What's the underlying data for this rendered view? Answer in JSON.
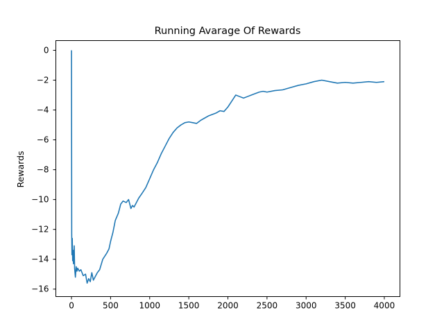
{
  "chart_data": {
    "type": "line",
    "title": "Running Avarage Of Rewards",
    "xlabel": "",
    "ylabel": "Rewards",
    "xlim": [
      -200,
      4200
    ],
    "ylim": [
      -16.5,
      0.65
    ],
    "xticks": [
      0,
      500,
      1000,
      1500,
      2000,
      2500,
      3000,
      3500,
      4000
    ],
    "yticks": [
      0,
      -2,
      -4,
      -6,
      -8,
      -10,
      -12,
      -14,
      -16
    ],
    "grid": false,
    "legend": "none",
    "series": [
      {
        "color": "#1f77b4",
        "x": [
          0,
          3,
          6,
          10,
          15,
          20,
          25,
          30,
          35,
          40,
          50,
          60,
          70,
          80,
          100,
          120,
          150,
          180,
          200,
          220,
          240,
          260,
          280,
          300,
          330,
          360,
          400,
          450,
          480,
          500,
          530,
          560,
          600,
          630,
          660,
          700,
          730,
          760,
          780,
          800,
          830,
          860,
          900,
          950,
          1000,
          1050,
          1100,
          1150,
          1200,
          1250,
          1300,
          1350,
          1400,
          1450,
          1500,
          1550,
          1600,
          1650,
          1700,
          1750,
          1800,
          1850,
          1900,
          1950,
          2000,
          2050,
          2100,
          2150,
          2200,
          2250,
          2300,
          2350,
          2400,
          2450,
          2500,
          2600,
          2700,
          2800,
          2900,
          3000,
          3100,
          3200,
          3300,
          3400,
          3500,
          3600,
          3700,
          3800,
          3900,
          4000
        ],
        "y": [
          0,
          -12.3,
          -13.7,
          -12.6,
          -14.1,
          -13.4,
          -14.3,
          -14.0,
          -13.1,
          -14.6,
          -15.2,
          -14.5,
          -14.8,
          -14.6,
          -14.8,
          -14.7,
          -15.1,
          -15.0,
          -15.6,
          -15.3,
          -15.5,
          -14.9,
          -15.4,
          -15.2,
          -14.9,
          -14.7,
          -14.0,
          -13.6,
          -13.3,
          -12.8,
          -12.2,
          -11.4,
          -10.9,
          -10.3,
          -10.1,
          -10.2,
          -10.0,
          -10.6,
          -10.4,
          -10.5,
          -10.2,
          -9.9,
          -9.6,
          -9.2,
          -8.6,
          -8.0,
          -7.5,
          -6.9,
          -6.4,
          -5.9,
          -5.5,
          -5.2,
          -5.0,
          -4.85,
          -4.8,
          -4.85,
          -4.9,
          -4.7,
          -4.55,
          -4.4,
          -4.3,
          -4.2,
          -4.05,
          -4.1,
          -3.8,
          -3.4,
          -3.0,
          -3.1,
          -3.2,
          -3.1,
          -3.0,
          -2.9,
          -2.8,
          -2.75,
          -2.8,
          -2.7,
          -2.65,
          -2.5,
          -2.35,
          -2.25,
          -2.1,
          -2.0,
          -2.1,
          -2.2,
          -2.15,
          -2.2,
          -2.15,
          -2.1,
          -2.15,
          -2.1
        ]
      }
    ]
  }
}
